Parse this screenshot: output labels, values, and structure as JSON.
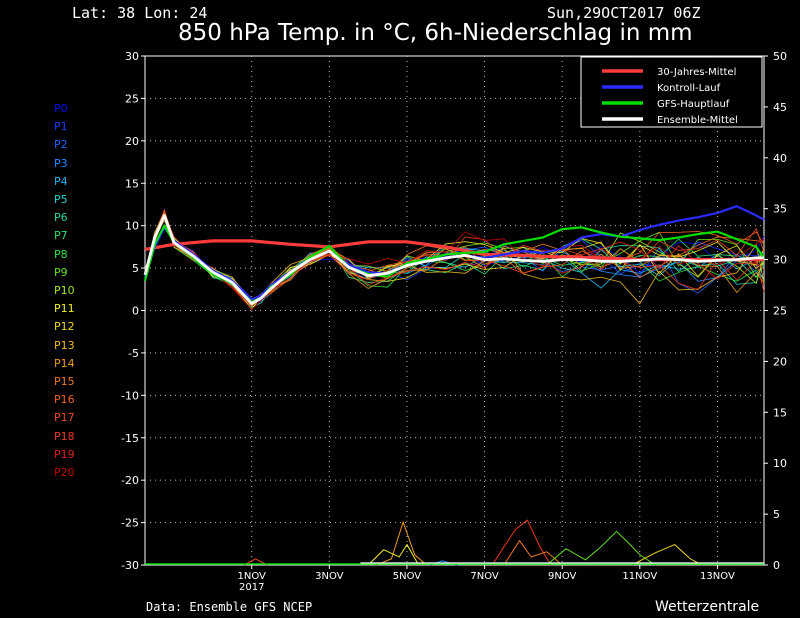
{
  "header": {
    "location": "Lat: 38 Lon: 24",
    "run": "Sun,29OCT2017 06Z",
    "title": "850 hPa Temp. in °C, 6h-Niederschlag in mm"
  },
  "footer": {
    "source": "Data: Ensemble GFS NCEP",
    "brand": "Wetterzentrale"
  },
  "members": [
    {
      "label": "P0",
      "color": "#0000ff"
    },
    {
      "label": "P1",
      "color": "#1a3cff"
    },
    {
      "label": "P2",
      "color": "#2060ff"
    },
    {
      "label": "P3",
      "color": "#1f8cff"
    },
    {
      "label": "P4",
      "color": "#20b4f0"
    },
    {
      "label": "P5",
      "color": "#20d2c8"
    },
    {
      "label": "P6",
      "color": "#20d8a0"
    },
    {
      "label": "P7",
      "color": "#28e070"
    },
    {
      "label": "P8",
      "color": "#30e040"
    },
    {
      "label": "P9",
      "color": "#60e020"
    },
    {
      "label": "P10",
      "color": "#a0e820"
    },
    {
      "label": "P11",
      "color": "#f0f020"
    },
    {
      "label": "P12",
      "color": "#f0d820"
    },
    {
      "label": "P13",
      "color": "#f0b820"
    },
    {
      "label": "P14",
      "color": "#f09820"
    },
    {
      "label": "P15",
      "color": "#f07820"
    },
    {
      "label": "P16",
      "color": "#f06020"
    },
    {
      "label": "P17",
      "color": "#f04820"
    },
    {
      "label": "P18",
      "color": "#e83820"
    },
    {
      "label": "P19",
      "color": "#e02020"
    },
    {
      "label": "P20",
      "color": "#c00000"
    }
  ],
  "chart_data": {
    "type": "line",
    "title": "850 hPa Temp. in °C, 6h-Niederschlag in mm",
    "xlabel": "",
    "ylabel_left": "",
    "ylabel_right": "",
    "x_range_days": [
      -1.75,
      14.2
    ],
    "x_ticks": [
      {
        "day": 1,
        "label": "1NOV",
        "sub": "2017"
      },
      {
        "day": 3,
        "label": "3NOV"
      },
      {
        "day": 5,
        "label": "5NOV"
      },
      {
        "day": 7,
        "label": "7NOV"
      },
      {
        "day": 9,
        "label": "9NOV"
      },
      {
        "day": 11,
        "label": "11NOV"
      },
      {
        "day": 13,
        "label": "13NOV"
      }
    ],
    "ylim_left": [
      -30,
      30
    ],
    "y_ticks_left": [
      30,
      25,
      20,
      15,
      10,
      5,
      0,
      -5,
      -10,
      -15,
      -20,
      -25,
      -30
    ],
    "ylim_right": [
      0,
      50
    ],
    "y_ticks_right": [
      50,
      45,
      40,
      35,
      30,
      25,
      20,
      15,
      10,
      5,
      0
    ],
    "grid": true,
    "legend_position": "top-right",
    "legend": [
      {
        "name": "30-Jahres-Mittel",
        "color": "#ff3b3b"
      },
      {
        "name": "Kontroll-Lauf",
        "color": "#2a2aff"
      },
      {
        "name": "GFS-Hauptlauf",
        "color": "#00dd00"
      },
      {
        "name": "Ensemble-Mittel",
        "color": "#ffffff"
      }
    ],
    "series": [
      {
        "name": "30-Jahres-Mittel",
        "color": "#ff3b3b",
        "width": 3.2,
        "x": [
          -1.75,
          -1,
          0,
          1,
          2,
          3,
          4,
          5,
          6,
          7,
          8,
          9,
          10,
          11,
          12,
          13,
          14.2
        ],
        "y": [
          7.2,
          7.8,
          8.2,
          8.2,
          7.8,
          7.5,
          8.1,
          8.1,
          7.5,
          6.6,
          6.5,
          6.3,
          6.2,
          6.0,
          6.0,
          6.0,
          6.0
        ]
      },
      {
        "name": "Kontroll-Lauf",
        "color": "#2a2aff",
        "width": 2.2,
        "x": [
          -1.75,
          -1.5,
          -1.25,
          -1,
          -0.5,
          0,
          0.5,
          1,
          1.25,
          1.5,
          2,
          2.5,
          3,
          3.5,
          4,
          4.5,
          5,
          5.5,
          6,
          6.5,
          7,
          7.5,
          8,
          8.5,
          9,
          9.5,
          10,
          10.5,
          11,
          11.5,
          12,
          12.5,
          13,
          13.5,
          14,
          14.2
        ],
        "y": [
          4.0,
          7.5,
          9.8,
          8.2,
          6.6,
          4.7,
          3.5,
          1.3,
          1.8,
          3.0,
          4.6,
          6.0,
          7.0,
          5.4,
          4.5,
          4.3,
          5.3,
          5.8,
          6.3,
          6.5,
          6.2,
          6.6,
          7.0,
          6.8,
          7.3,
          8.6,
          9.0,
          8.7,
          9.5,
          10.1,
          10.6,
          11.0,
          11.5,
          12.3,
          11.2,
          10.7
        ]
      },
      {
        "name": "GFS-Hauptlauf",
        "color": "#00dd00",
        "width": 2.2,
        "x": [
          -1.75,
          -1.5,
          -1.25,
          -1,
          -0.5,
          0,
          0.5,
          1,
          1.25,
          1.5,
          2,
          2.5,
          3,
          3.5,
          4,
          4.5,
          5,
          5.5,
          6,
          6.5,
          7,
          7.5,
          8,
          8.5,
          9,
          9.5,
          10,
          10.5,
          11,
          11.5,
          12,
          12.5,
          13,
          13.5,
          14,
          14.2
        ],
        "y": [
          3.5,
          7.8,
          10.0,
          8.0,
          6.2,
          4.3,
          3.2,
          1.0,
          1.5,
          2.8,
          4.2,
          6.3,
          7.6,
          5.1,
          4.3,
          4.0,
          5.6,
          6.0,
          6.6,
          6.8,
          6.9,
          7.8,
          8.2,
          8.6,
          9.6,
          9.8,
          9.2,
          8.7,
          8.5,
          8.3,
          8.6,
          9.0,
          9.3,
          8.4,
          7.5,
          6.2
        ]
      },
      {
        "name": "Ensemble-Mittel",
        "color": "#ffffff",
        "width": 2.8,
        "x": [
          -1.75,
          -1.5,
          -1.25,
          -1,
          -0.5,
          0,
          0.5,
          1,
          1.25,
          1.5,
          2,
          2.5,
          3,
          3.5,
          4,
          4.5,
          5,
          5.5,
          6,
          6.5,
          7,
          7.5,
          8,
          8.5,
          9,
          9.5,
          10,
          10.5,
          11,
          11.5,
          12,
          12.5,
          13,
          13.5,
          14,
          14.2
        ],
        "y": [
          4.2,
          8.6,
          11.2,
          8.0,
          6.4,
          4.5,
          3.3,
          0.8,
          1.5,
          2.6,
          4.5,
          6.0,
          7.0,
          5.1,
          4.1,
          4.4,
          5.3,
          5.8,
          6.2,
          6.5,
          6.0,
          6.1,
          5.9,
          5.8,
          6.0,
          6.0,
          5.8,
          5.8,
          5.9,
          6.1,
          6.0,
          5.8,
          5.9,
          6.0,
          6.2,
          6.2
        ]
      }
    ],
    "precip_mm_members": [
      {
        "name": "P14",
        "color": "#f09820",
        "x": [
          4.2,
          4.6,
          4.9,
          5.2,
          5.5
        ],
        "y": [
          0,
          0.6,
          4.2,
          1.0,
          0
        ]
      },
      {
        "name": "P11",
        "color": "#f0f020",
        "x": [
          4.0,
          4.4,
          4.8,
          5.0,
          5.3
        ],
        "y": [
          0,
          1.5,
          0.8,
          2.0,
          0
        ]
      },
      {
        "name": "P18",
        "color": "#e83820",
        "x": [
          7.2,
          7.5,
          7.8,
          8.1,
          8.4,
          8.7
        ],
        "y": [
          0,
          1.8,
          3.5,
          4.4,
          2.0,
          0
        ]
      },
      {
        "name": "P15",
        "color": "#f07820",
        "x": [
          7.5,
          7.9,
          8.2,
          8.6,
          9.0
        ],
        "y": [
          0,
          2.4,
          0.8,
          1.3,
          0
        ]
      },
      {
        "name": "P9",
        "color": "#60e020",
        "x": [
          8.6,
          9.1,
          9.6,
          10.0,
          10.4,
          10.7,
          11.0,
          11.4
        ],
        "y": [
          0,
          1.6,
          0.5,
          1.8,
          3.3,
          2.2,
          1.0,
          0
        ]
      },
      {
        "name": "P12",
        "color": "#f0d820",
        "x": [
          10.8,
          11.4,
          11.9,
          12.3,
          12.6
        ],
        "y": [
          0,
          1.2,
          2.0,
          0.6,
          0
        ]
      },
      {
        "name": "P17",
        "color": "#f04820",
        "x": [
          0.8,
          1.1,
          1.4
        ],
        "y": [
          0,
          0.6,
          0
        ]
      },
      {
        "name": "P3",
        "color": "#1f8cff",
        "x": [
          5.6,
          5.9,
          6.3
        ],
        "y": [
          0,
          0.4,
          0
        ]
      }
    ]
  }
}
